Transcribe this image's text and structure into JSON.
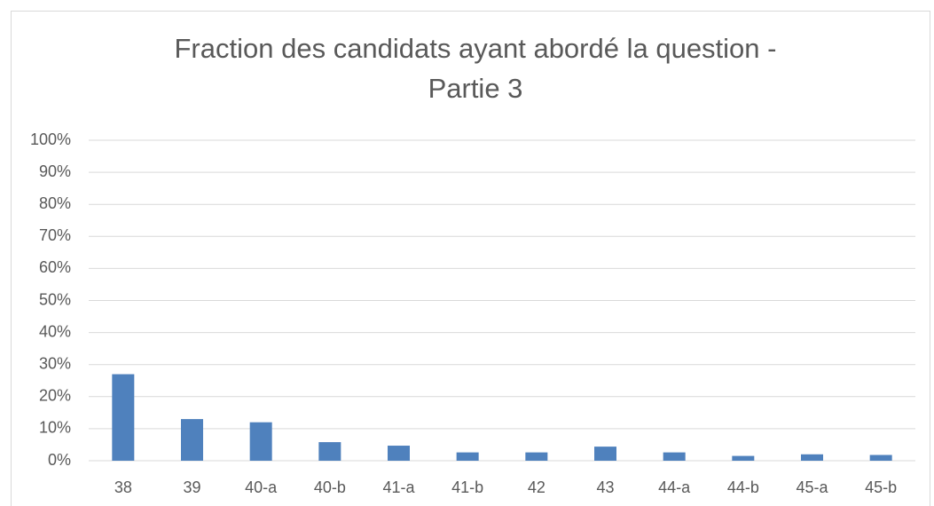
{
  "chart_data": {
    "type": "bar",
    "title": [
      "Fraction des candidats ayant abordé la question -",
      "Partie 3"
    ],
    "categories": [
      "38",
      "39",
      "40-a",
      "40-b",
      "41-a",
      "41-b",
      "42",
      "43",
      "44-a",
      "44-b",
      "45-a",
      "45-b"
    ],
    "values": [
      27,
      13,
      12,
      5.8,
      4.7,
      2.6,
      2.6,
      4.4,
      2.6,
      1.5,
      2.0,
      1.8
    ],
    "color": "#4f81bd",
    "ylim": [
      0,
      100
    ],
    "yticks": [
      {
        "value": 0,
        "label": "0%"
      },
      {
        "value": 10,
        "label": "10%"
      },
      {
        "value": 20,
        "label": "20%"
      },
      {
        "value": 30,
        "label": "30%"
      },
      {
        "value": 40,
        "label": "40%"
      },
      {
        "value": 50,
        "label": "50%"
      },
      {
        "value": 60,
        "label": "60%"
      },
      {
        "value": 70,
        "label": "70%"
      },
      {
        "value": 80,
        "label": "80%"
      },
      {
        "value": 90,
        "label": "90%"
      },
      {
        "value": 100,
        "label": "100%"
      }
    ],
    "grid": true
  }
}
